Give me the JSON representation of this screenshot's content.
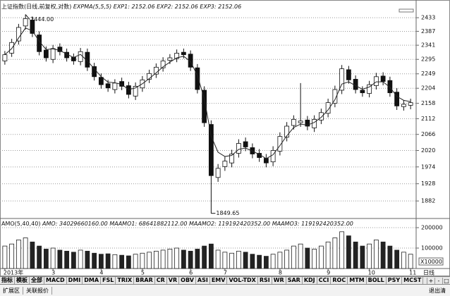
{
  "chart_data": [
    {
      "type": "candlestick",
      "title": "上证指数(日线,前复权,对数)",
      "readouts": [
        "EXP1: 2152.06",
        "EXP2: 2152.06",
        "EXP3: 2152.06"
      ],
      "categories": [
        "2013年",
        null,
        null,
        null,
        null,
        null,
        null,
        "3",
        null,
        null,
        null,
        null,
        null,
        null,
        "4",
        null,
        null,
        null,
        null,
        null,
        "5",
        null,
        null,
        null,
        null,
        null,
        null,
        "6",
        null,
        null,
        null,
        null,
        "7",
        null,
        null,
        null,
        null,
        null,
        null,
        null,
        "8",
        null,
        null,
        null,
        null,
        null,
        null,
        "9",
        null,
        null,
        null,
        null,
        null,
        "10",
        null,
        null,
        null,
        null,
        null,
        "11"
      ],
      "open": [
        2290,
        2315,
        2355,
        2405,
        2425,
        2375,
        2325,
        2295,
        2335,
        2318,
        2302,
        2288,
        2318,
        2272,
        2238,
        2218,
        2200,
        2225,
        2212,
        2180,
        2205,
        2232,
        2248,
        2268,
        2292,
        2298,
        2318,
        2312,
        2268,
        2198,
        2095,
        1945,
        1975,
        1985,
        2012,
        2045,
        2028,
        2012,
        1998,
        1988,
        2018,
        2058,
        2092,
        2100,
        2108,
        2085,
        2108,
        2128,
        2158,
        2198,
        2262,
        2232,
        2198,
        2188,
        2212,
        2242,
        2228,
        2192,
        2148,
        2152
      ],
      "high": [
        2322,
        2362,
        2412,
        2444,
        2437,
        2387,
        2337,
        2342,
        2347,
        2330,
        2314,
        2332,
        2330,
        2284,
        2250,
        2230,
        2232,
        2237,
        2224,
        2222,
        2242,
        2262,
        2282,
        2302,
        2312,
        2327,
        2330,
        2324,
        2280,
        2210,
        2107,
        1982,
        2002,
        2022,
        2052,
        2057,
        2040,
        2024,
        2010,
        2032,
        2072,
        2102,
        2122,
        2220,
        2120,
        2122,
        2142,
        2172,
        2212,
        2277,
        2274,
        2244,
        2210,
        2227,
        2252,
        2254,
        2240,
        2204,
        2167,
        2172
      ],
      "low": [
        2278,
        2303,
        2343,
        2393,
        2368,
        2308,
        2288,
        2283,
        2308,
        2288,
        2278,
        2276,
        2258,
        2228,
        2203,
        2193,
        2188,
        2198,
        2173,
        2168,
        2193,
        2220,
        2236,
        2256,
        2280,
        2286,
        2298,
        2258,
        2188,
        2088,
        1849.65,
        1933,
        1963,
        1973,
        2000,
        2018,
        1998,
        1988,
        1973,
        1976,
        2006,
        2046,
        2080,
        2088,
        2078,
        2073,
        2096,
        2116,
        2146,
        2186,
        2218,
        2188,
        2178,
        2176,
        2200,
        2213,
        2178,
        2138,
        2136,
        2140
      ],
      "close": [
        2310,
        2350,
        2400,
        2430,
        2380,
        2320,
        2300,
        2330,
        2320,
        2300,
        2290,
        2320,
        2270,
        2240,
        2215,
        2205,
        2220,
        2210,
        2185,
        2210,
        2230,
        2250,
        2270,
        2290,
        2300,
        2315,
        2310,
        2270,
        2200,
        2100,
        1950,
        1970,
        1990,
        2010,
        2040,
        2030,
        2010,
        2000,
        1985,
        2020,
        2060,
        2090,
        2110,
        2105,
        2090,
        2110,
        2130,
        2160,
        2200,
        2265,
        2230,
        2200,
        2190,
        2215,
        2240,
        2225,
        2190,
        2150,
        2155,
        2160
      ],
      "series": [
        {
          "name": "EXPMA(5,5,5)",
          "color": "#222222",
          "values": [
            2310,
            2330,
            2365,
            2398,
            2389,
            2354,
            2327,
            2329,
            2324,
            2312,
            2301,
            2311,
            2290,
            2265,
            2240,
            2223,
            2221,
            2216,
            2200,
            2205,
            2218,
            2234,
            2252,
            2271,
            2286,
            2300,
            2305,
            2288,
            2244,
            2172,
            2061,
            2015,
            2003,
            2006,
            2023,
            2027,
            2018,
            2009,
            1997,
            2008,
            2034,
            2062,
            2086,
            2096,
            2093,
            2101,
            2116,
            2138,
            2169,
            2217,
            2224,
            2212,
            2201,
            2208,
            2224,
            2224,
            2207,
            2179,
            2167,
            2163
          ]
        }
      ],
      "yscale": "log",
      "ylim": [
        1840,
        2455
      ],
      "yticks": [
        1882,
        1928,
        1974,
        2020,
        2066,
        2112,
        2158,
        2204,
        2249,
        2295,
        2341,
        2387,
        2433
      ],
      "grid": true,
      "annotations": [
        {
          "value": 2444,
          "label": "2444.00"
        },
        {
          "value": 1849.65,
          "label": "1849.65"
        }
      ]
    },
    {
      "type": "bar",
      "title": "AMO(5,40,40)",
      "readouts": [
        "AMO: 34029660160.00",
        "MAAMO1: 68641882112.00",
        "MAAMO2: 119192420352.00",
        "MAAMO3: 119192420352.00"
      ],
      "values": [
        110000,
        120000,
        140000,
        150000,
        130000,
        110000,
        95000,
        100000,
        90000,
        85000,
        80000,
        90000,
        85000,
        75000,
        70000,
        72000,
        68000,
        65000,
        62000,
        70000,
        75000,
        80000,
        85000,
        90000,
        95000,
        100000,
        90000,
        85000,
        95000,
        110000,
        120000,
        90000,
        80000,
        75000,
        85000,
        80000,
        70000,
        65000,
        60000,
        70000,
        80000,
        90000,
        110000,
        120000,
        100000,
        95000,
        110000,
        130000,
        150000,
        180000,
        160000,
        130000,
        110000,
        120000,
        140000,
        130000,
        110000,
        90000,
        80000,
        70000
      ],
      "ylim": [
        0,
        238000
      ],
      "yticks": [
        100000,
        200000
      ],
      "unit_label": "X10000",
      "grid": true,
      "color": "#222222"
    }
  ],
  "ui": {
    "period": "日线",
    "tabs": [
      "指标",
      "模板",
      "全部",
      "MACD",
      "DMI",
      "DMA",
      "FSL",
      "TRIX",
      "BRAR",
      "CR",
      "VR",
      "OBV",
      "ASI",
      "EMV",
      "VOL-TDX",
      "RSI",
      "WR",
      "SAR",
      "KDJ",
      "CCI",
      "ROC",
      "MTM",
      "BOLL",
      "PSY",
      "MCST"
    ],
    "controls": [
      "+",
      "-",
      "□"
    ],
    "bottom_left": [
      "扩展区",
      "关联报价"
    ],
    "bottom_right": "退出清"
  }
}
